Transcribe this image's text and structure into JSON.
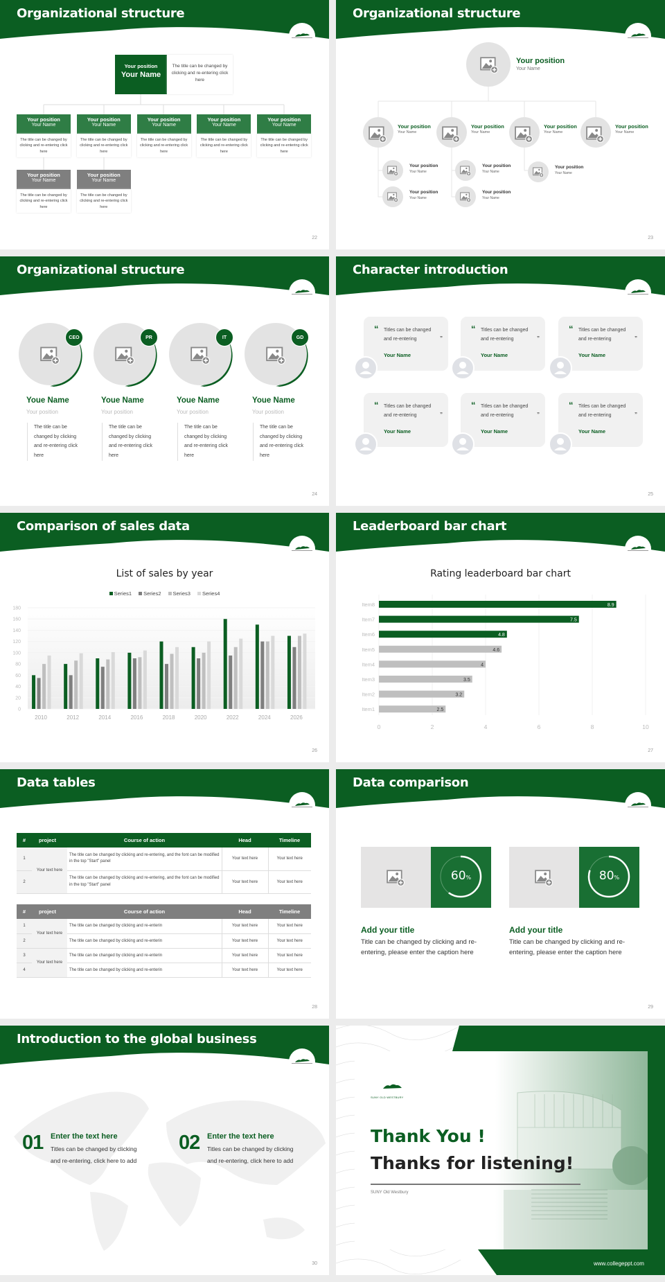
{
  "colors": {
    "brand_green": "#0b5e22",
    "mid_green": "#2f7d45",
    "gray": "#7f7f7f"
  },
  "slides": [
    {
      "title": "Organizational structure",
      "page": "22",
      "top": {
        "position": "Your position",
        "name": "Your Name",
        "desc": "The title can be changed by clicking and re-entering click here"
      },
      "level2": [
        {
          "position": "Your position",
          "name": "Your Name",
          "desc": "The title can be changed by clicking and re-entering click here"
        },
        {
          "position": "Your position",
          "name": "Your Name",
          "desc": "The title can be changed by clicking and re-entering click here"
        },
        {
          "position": "Your position",
          "name": "Your Name",
          "desc": "The title can be changed by clicking and re-entering click here"
        },
        {
          "position": "Your position",
          "name": "Your Name",
          "desc": "The title can be changed by clicking and re-entering click here"
        },
        {
          "position": "Your position",
          "name": "Your Name",
          "desc": "The title can be changed by clicking and re-entering click here"
        }
      ],
      "level3": [
        {
          "position": "Your position",
          "name": "Your Name",
          "desc": "The title can be changed by clicking and re-entering click here"
        },
        {
          "position": "Your position",
          "name": "Your Name",
          "desc": "The title can be changed by clicking and re-entering click here"
        }
      ]
    },
    {
      "title": "Organizational structure",
      "page": "23",
      "top": {
        "position": "Your position",
        "name": "Your Name"
      },
      "level2": [
        {
          "position": "Your position",
          "name": "Your Name"
        },
        {
          "position": "Your position",
          "name": "Your Name"
        },
        {
          "position": "Your position",
          "name": "Your Name"
        },
        {
          "position": "Your position",
          "name": "Your Name"
        }
      ],
      "level3": [
        {
          "position": "Your position",
          "name": "Your Name"
        },
        {
          "position": "Your position",
          "name": "Your Name"
        },
        {
          "position": "Your position",
          "name": "Your Name"
        },
        {
          "position": "Your position",
          "name": "Your Name"
        },
        {
          "position": "Your position",
          "name": "Your Name"
        }
      ]
    },
    {
      "title": "Organizational structure",
      "page": "24",
      "people": [
        {
          "badge": "CEO",
          "name": "Youe Name",
          "position": "Your position",
          "desc": "The title can be changed by clicking and re-entering click here"
        },
        {
          "badge": "PR",
          "name": "Youe Name",
          "position": "Your position",
          "desc": "The title can be changed by clicking and re-entering click here"
        },
        {
          "badge": "IT",
          "name": "Youe Name",
          "position": "Your position",
          "desc": "The title can be changed by clicking and re-entering click here"
        },
        {
          "badge": "GD",
          "name": "Youe Name",
          "position": "Your position",
          "desc": "The title can be changed by clicking and re-entering click here"
        }
      ]
    },
    {
      "title": "Character introduction",
      "page": "25",
      "cards": [
        {
          "quote": "Titles can be changed and re-entering",
          "name": "Your Name"
        },
        {
          "quote": "Titles can be changed and re-entering",
          "name": "Your Name"
        },
        {
          "quote": "Titles can be changed and re-entering",
          "name": "Your Name"
        },
        {
          "quote": "Titles can be changed and re-entering",
          "name": "Your Name"
        },
        {
          "quote": "Titles can be changed and re-entering",
          "name": "Your Name"
        },
        {
          "quote": "Titles can be changed and re-entering",
          "name": "Your Name"
        }
      ]
    },
    {
      "title": "Comparison of sales data",
      "page": "26"
    },
    {
      "title": "Leaderboard bar chart",
      "page": "27"
    },
    {
      "title": "Data tables",
      "page": "28",
      "headers": [
        "#",
        "project",
        "Course of action",
        "Head",
        "Timeline"
      ],
      "table1": {
        "project": "Your text here",
        "rows": [
          {
            "n": "1",
            "action": "The title can be changed by clicking and re-entering, and the font can be modified in the top \"Start\" panel",
            "head": "Your text here",
            "timeline": "Your text here"
          },
          {
            "n": "2",
            "action": "The title can be changed by clicking and re-entering, and the font can be modified in the top \"Start\" panel",
            "head": "Your text here",
            "timeline": "Your text here"
          }
        ]
      },
      "table2": {
        "projects": [
          "Your text here",
          "Your text here"
        ],
        "rows": [
          {
            "n": "1",
            "action": "The title can be changed by clicking and re-enterin",
            "head": "Your text here",
            "timeline": "Your text here"
          },
          {
            "n": "2",
            "action": "The title can be changed by clicking and re-enterin",
            "head": "Your text here",
            "timeline": "Your text here"
          },
          {
            "n": "3",
            "action": "The title can be changed by clicking and re-enterin",
            "head": "Your text here",
            "timeline": "Your text here"
          },
          {
            "n": "4",
            "action": "The title can be changed by clicking and re-enterin",
            "head": "Your text here",
            "timeline": "Your text here"
          }
        ]
      }
    },
    {
      "title": "Data comparison",
      "page": "29",
      "items": [
        {
          "percent": 60,
          "value": "60",
          "unit": "%",
          "heading": "Add your title",
          "caption": "Title can be changed by clicking and re-entering, please enter the caption here"
        },
        {
          "percent": 80,
          "value": "80",
          "unit": "%",
          "heading": "Add your title",
          "caption": "Title can be changed by clicking and re-entering, please enter the caption here"
        }
      ]
    },
    {
      "title": "Introduction to the global business",
      "page": "30",
      "items": [
        {
          "num": "01",
          "heading": "Enter the text here",
          "text": "Titles can be changed by clicking and re-entering, click here to add"
        },
        {
          "num": "02",
          "heading": "Enter the text here",
          "text": "Titles can be changed by clicking and re-entering, click here to add"
        }
      ]
    },
    {
      "logo_text": "SUNY OLD WESTBURY",
      "thank": "Thank You !",
      "thanks": "Thanks for listening!",
      "org": "SUNY Old Westbury",
      "url": "www.collegeppt.com"
    }
  ],
  "chart_data": [
    {
      "type": "bar",
      "title": "List of sales by year",
      "categories": [
        "2010",
        "2012",
        "2014",
        "2016",
        "2018",
        "2020",
        "2022",
        "2024",
        "2026"
      ],
      "series": [
        {
          "name": "Series1",
          "color": "#0b5e22",
          "values": [
            60,
            80,
            90,
            100,
            120,
            110,
            160,
            150,
            130
          ]
        },
        {
          "name": "Series2",
          "color": "#7f7f7f",
          "values": [
            55,
            60,
            75,
            90,
            80,
            90,
            95,
            120,
            110
          ]
        },
        {
          "name": "Series3",
          "color": "#bfbfbf",
          "values": [
            80,
            86,
            88,
            92,
            98,
            100,
            110,
            120,
            130
          ]
        },
        {
          "name": "Series4",
          "color": "#d9d9d9",
          "values": [
            95,
            99,
            101,
            104,
            110,
            120,
            125,
            130,
            134
          ]
        }
      ],
      "ylim": [
        0,
        180
      ],
      "yticks": [
        0,
        20,
        40,
        60,
        80,
        100,
        120,
        140,
        160,
        180
      ],
      "legend": "top",
      "grid": true
    },
    {
      "type": "bar",
      "orientation": "horizontal",
      "title": "Rating leaderboard bar chart",
      "categories": [
        "Item8",
        "Item7",
        "Item6",
        "Item5",
        "Item4",
        "Item3",
        "Item2",
        "Item1"
      ],
      "values": [
        8.9,
        7.5,
        4.8,
        4.6,
        4,
        3.5,
        3.2,
        2.5
      ],
      "labels": [
        "8.9",
        "7.5",
        "4.8",
        "4.6",
        "4",
        "3.5",
        "3.2",
        "2.5"
      ],
      "colors": [
        "#0b5e22",
        "#0b5e22",
        "#0b5e22",
        "#bfbfbf",
        "#bfbfbf",
        "#bfbfbf",
        "#bfbfbf",
        "#bfbfbf"
      ],
      "xlim": [
        0,
        10
      ],
      "xticks": [
        0,
        2,
        4,
        6,
        8,
        10
      ],
      "grid": true
    }
  ]
}
